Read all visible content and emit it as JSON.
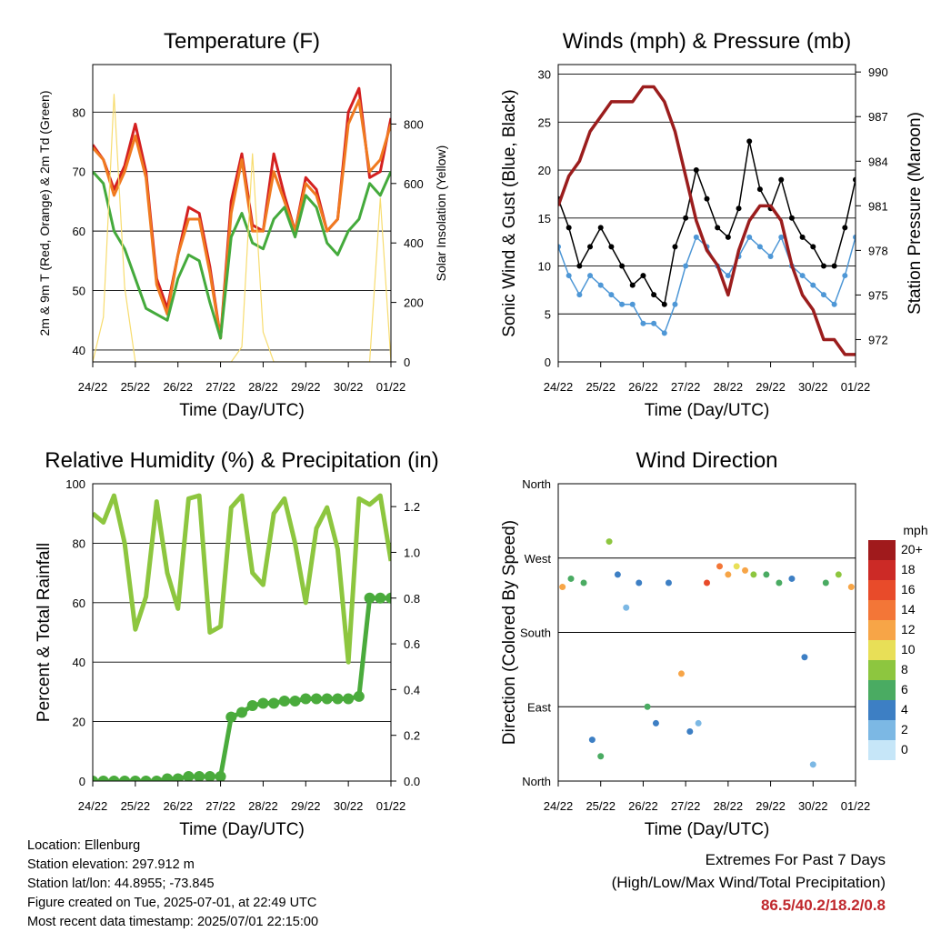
{
  "x_ticks": [
    "24/22",
    "25/22",
    "26/22",
    "27/22",
    "28/22",
    "29/22",
    "30/22",
    "01/22"
  ],
  "xlabel": "Time (Day/UTC)",
  "chart_data": [
    {
      "type": "line",
      "title": "Temperature (F)",
      "ylabel": "2m & 9m T (Red, Orange) & 2m Td (Green)",
      "ylabel_right": "Solar Insolation (Yellow)",
      "ylim": [
        38,
        88
      ],
      "yticks": [
        40,
        50,
        60,
        70,
        80
      ],
      "ylim_right": [
        0,
        1000
      ],
      "yticks_right": [
        0,
        200,
        400,
        600,
        800
      ],
      "grid": "y",
      "x": [
        0,
        0.25,
        0.5,
        0.75,
        1,
        1.25,
        1.5,
        1.75,
        2,
        2.25,
        2.5,
        2.75,
        3,
        3.25,
        3.5,
        3.75,
        4,
        4.25,
        4.5,
        4.75,
        5,
        5.25,
        5.5,
        5.75,
        6,
        6.25,
        6.5,
        6.75,
        7
      ],
      "series": [
        {
          "color": "#d42020",
          "values": [
            74.5,
            72,
            67,
            71,
            78,
            70,
            52,
            47,
            56,
            64,
            63,
            54,
            42,
            65,
            73,
            61,
            60,
            73,
            66,
            60,
            69,
            67,
            60,
            62,
            80,
            84,
            69,
            70,
            79
          ]
        },
        {
          "color": "#f07a20",
          "values": [
            74,
            72,
            66,
            70,
            76,
            69,
            51,
            46,
            56,
            62,
            62,
            53,
            42,
            63,
            72,
            60,
            60,
            70,
            65,
            60,
            68,
            66,
            60,
            62,
            78,
            82,
            70,
            72,
            78
          ]
        },
        {
          "color": "#44aa3c",
          "values": [
            70,
            68,
            60,
            57,
            52,
            47,
            46,
            45,
            52,
            56,
            55,
            48,
            42,
            59,
            63,
            58,
            57,
            62,
            64,
            59,
            66,
            64,
            58,
            56,
            60,
            62,
            68,
            66,
            70
          ]
        },
        {
          "color": "#f7dc6f",
          "values": [
            0,
            150,
            900,
            250,
            0,
            0,
            0,
            0,
            0,
            0,
            0,
            0,
            0,
            0,
            50,
            700,
            100,
            0,
            0,
            0,
            0,
            0,
            0,
            0,
            0,
            0,
            0,
            550,
            0
          ]
        }
      ]
    },
    {
      "type": "scatter",
      "title": "Winds (mph) & Pressure (mb)",
      "ylabel": "Sonic Wind & Gust (Blue, Black)",
      "ylabel_right": "Station Pressure (Maroon)",
      "ylim": [
        0,
        31
      ],
      "yticks": [
        0,
        5,
        10,
        15,
        20,
        25,
        30
      ],
      "ylim_right": [
        970.5,
        990.5
      ],
      "yticks_right": [
        972,
        975,
        978,
        981,
        984,
        987,
        990
      ],
      "grid": "y",
      "x": [
        0,
        0.25,
        0.5,
        0.75,
        1,
        1.25,
        1.5,
        1.75,
        2,
        2.25,
        2.5,
        2.75,
        3,
        3.25,
        3.5,
        3.75,
        4,
        4.25,
        4.5,
        4.75,
        5,
        5.25,
        5.5,
        5.75,
        6,
        6.25,
        6.5,
        6.75,
        7
      ],
      "series": [
        {
          "color": "#4e97d6",
          "values": [
            12,
            9,
            7,
            9,
            8,
            7,
            6,
            6,
            4,
            4,
            3,
            6,
            10,
            13,
            12,
            10,
            9,
            11,
            13,
            12,
            11,
            13,
            10,
            9,
            8,
            7,
            6,
            9,
            13
          ]
        },
        {
          "color": "#000000",
          "values": [
            17,
            14,
            10,
            12,
            14,
            12,
            10,
            8,
            9,
            7,
            6,
            12,
            15,
            20,
            17,
            14,
            13,
            16,
            23,
            18,
            16,
            19,
            15,
            13,
            12,
            10,
            10,
            14,
            19
          ]
        },
        {
          "color": "#9b1d1d",
          "values": [
            981,
            983,
            984,
            986,
            987,
            988,
            988,
            988,
            989,
            989,
            988,
            986,
            983,
            980,
            978,
            977,
            975,
            978,
            980,
            981,
            981,
            980,
            977,
            975,
            974,
            972,
            972,
            971,
            971
          ]
        }
      ]
    },
    {
      "type": "line",
      "title": "Relative Humidity (%) & Precipitation (in)",
      "ylabel": "Percent & Total Rainfall",
      "ylim": [
        0,
        100
      ],
      "yticks": [
        0,
        20,
        40,
        60,
        80,
        100
      ],
      "ylim_right": [
        0,
        1.3
      ],
      "yticks_right": [
        0.0,
        0.2,
        0.4,
        0.6,
        0.8,
        1.0,
        1.2
      ],
      "grid": "y",
      "x": [
        0,
        0.25,
        0.5,
        0.75,
        1,
        1.25,
        1.5,
        1.75,
        2,
        2.25,
        2.5,
        2.75,
        3,
        3.25,
        3.5,
        3.75,
        4,
        4.25,
        4.5,
        4.75,
        5,
        5.25,
        5.5,
        5.75,
        6,
        6.25,
        6.5,
        6.75,
        7
      ],
      "series": [
        {
          "color": "#8dc63f",
          "values": [
            90,
            87,
            96,
            80,
            51,
            62,
            94,
            70,
            58,
            95,
            96,
            50,
            52,
            92,
            96,
            70,
            66,
            90,
            95,
            80,
            60,
            85,
            92,
            78,
            40,
            95,
            93,
            96,
            74
          ]
        },
        {
          "color": "#4aab3c",
          "values": [
            0,
            0,
            0,
            0,
            0,
            0,
            0,
            0.01,
            0.01,
            0.02,
            0.02,
            0.02,
            0.02,
            0.28,
            0.3,
            0.33,
            0.34,
            0.34,
            0.35,
            0.35,
            0.36,
            0.36,
            0.36,
            0.36,
            0.36,
            0.37,
            0.8,
            0.8,
            0.8
          ]
        }
      ]
    },
    {
      "type": "scatter",
      "title": "Wind Direction",
      "ylabel": "Direction (Colored By Speed)",
      "yticks_labels": [
        "North",
        "East",
        "South",
        "West",
        "North"
      ],
      "ylim": [
        0,
        360
      ],
      "grid": "y",
      "colorbar_title": "mph",
      "colorbar_labels": [
        "20+",
        "18",
        "16",
        "14",
        "12",
        "10",
        "8",
        "6",
        "4",
        "2",
        "0"
      ],
      "colorbar_colors": [
        "#a01a1c",
        "#cc2a26",
        "#e84b2a",
        "#f37637",
        "#f7a547",
        "#e8df57",
        "#8dc63f",
        "#4aab62",
        "#3d7fc4",
        "#7cb8e4",
        "#c6e6f8"
      ],
      "x": [
        0.1,
        0.3,
        0.6,
        0.8,
        1.0,
        1.2,
        1.4,
        1.6,
        1.9,
        2.1,
        2.3,
        2.6,
        2.9,
        3.1,
        3.3,
        3.5,
        3.8,
        4.0,
        4.2,
        4.4,
        4.6,
        4.9,
        5.2,
        5.5,
        5.8,
        6.0,
        6.3,
        6.6,
        6.9
      ],
      "series": [
        {
          "name": "direction",
          "values": [
            235,
            245,
            240,
            50,
            30,
            290,
            250,
            210,
            240,
            90,
            70,
            240,
            130,
            60,
            70,
            240,
            260,
            250,
            260,
            255,
            250,
            250,
            240,
            245,
            150,
            20,
            240,
            250,
            235
          ]
        },
        {
          "name": "speed",
          "values": [
            12,
            5,
            6,
            4,
            6,
            7,
            3,
            2,
            4,
            6,
            3,
            4,
            12,
            3,
            2,
            16,
            14,
            12,
            9,
            11,
            8,
            6,
            5,
            4,
            3,
            2,
            5,
            7,
            12
          ]
        }
      ]
    }
  ],
  "info": {
    "location": "Location: Ellenburg",
    "elevation": "Station elevation: 297.912 m",
    "latlon": "Station lat/lon: 44.8955; -73.845",
    "created": "Figure created on Tue, 2025-07-01, at 22:49 UTC",
    "timestamp": "Most recent data timestamp: 2025/07/01 22:15:00"
  },
  "extremes": {
    "line1": "Extremes For Past 7 Days",
    "line2": "(High/Low/Max Wind/Total Precipitation)",
    "values": "86.5/40.2/18.2/0.8"
  }
}
